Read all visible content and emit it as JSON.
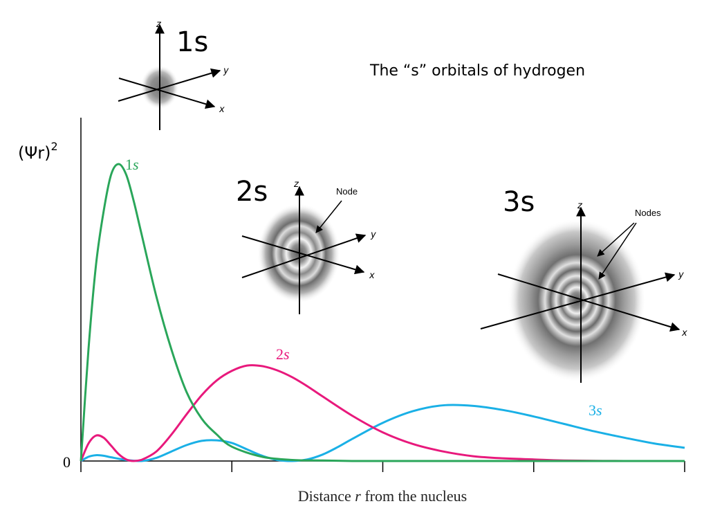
{
  "title": "The “s” orbitals of hydrogen",
  "chart_data": {
    "type": "line",
    "title": "The “s” orbitals of hydrogen",
    "xlabel": "Distance r from the nucleus",
    "xlabel_parts": [
      "Distance ",
      "r",
      " from the nucleus"
    ],
    "ylabel_base": "(Ψr)",
    "ylabel_exp": "2",
    "y_tick_labels": [
      "0"
    ],
    "x_tick_count": 4,
    "xlim": [
      0,
      20
    ],
    "ylim": [
      0,
      0.56
    ],
    "grid": false,
    "legend": "none (series labelled directly on curves)",
    "series": [
      {
        "name": "1s",
        "label_number": "1",
        "label_letter": "s",
        "color": "#2aa65a",
        "x": [
          0,
          0.25,
          0.5,
          0.75,
          1,
          1.25,
          1.5,
          1.75,
          2,
          2.5,
          3,
          3.5,
          4,
          4.5,
          5,
          6,
          7,
          8,
          9,
          10,
          12,
          14,
          16,
          18,
          20
        ],
        "values": [
          0,
          0.21,
          0.37,
          0.47,
          0.54,
          0.56,
          0.54,
          0.49,
          0.43,
          0.31,
          0.21,
          0.13,
          0.08,
          0.05,
          0.027,
          0.008,
          0.002,
          0.001,
          0,
          0,
          0,
          0,
          0,
          0,
          0
        ]
      },
      {
        "name": "2s",
        "label_number": "2",
        "label_letter": "s",
        "color": "#e8197c",
        "x": [
          0,
          0.25,
          0.5,
          0.75,
          1,
          1.25,
          1.5,
          1.75,
          2,
          2.5,
          3,
          3.5,
          4,
          4.5,
          5,
          5.5,
          6,
          6.5,
          7,
          7.5,
          8,
          9,
          10,
          11,
          12,
          13,
          14,
          15,
          16,
          18,
          20
        ],
        "values": [
          0,
          0.033,
          0.048,
          0.044,
          0.029,
          0.013,
          0.003,
          0,
          0.002,
          0.018,
          0.05,
          0.088,
          0.124,
          0.152,
          0.17,
          0.18,
          0.179,
          0.171,
          0.158,
          0.141,
          0.122,
          0.085,
          0.054,
          0.032,
          0.018,
          0.009,
          0.005,
          0.003,
          0.001,
          0,
          0
        ]
      },
      {
        "name": "3s",
        "label_number": "3",
        "label_letter": "s",
        "color": "#1ab0e6",
        "x": [
          0,
          0.25,
          0.5,
          0.75,
          1,
          1.5,
          2,
          2.5,
          3,
          3.5,
          4,
          4.5,
          5,
          5.5,
          6,
          6.5,
          7,
          7.5,
          8,
          8.5,
          9,
          10,
          11,
          12,
          13,
          14,
          15,
          16,
          17,
          18,
          19,
          20
        ],
        "values": [
          0,
          0.008,
          0.011,
          0.01,
          0.007,
          0.002,
          0,
          0.006,
          0.018,
          0.03,
          0.038,
          0.039,
          0.034,
          0.022,
          0.01,
          0.002,
          0,
          0.003,
          0.012,
          0.026,
          0.042,
          0.072,
          0.094,
          0.105,
          0.104,
          0.096,
          0.084,
          0.07,
          0.056,
          0.044,
          0.033,
          0.025
        ]
      }
    ]
  },
  "insets": [
    {
      "label": "1s",
      "axes": {
        "z": "z",
        "y": "y",
        "x": "x"
      },
      "note": ""
    },
    {
      "label": "2s",
      "axes": {
        "z": "z",
        "y": "y",
        "x": "x"
      },
      "note": "Node"
    },
    {
      "label": "3s",
      "axes": {
        "z": "z",
        "y": "y",
        "x": "x"
      },
      "note": "Nodes"
    }
  ]
}
